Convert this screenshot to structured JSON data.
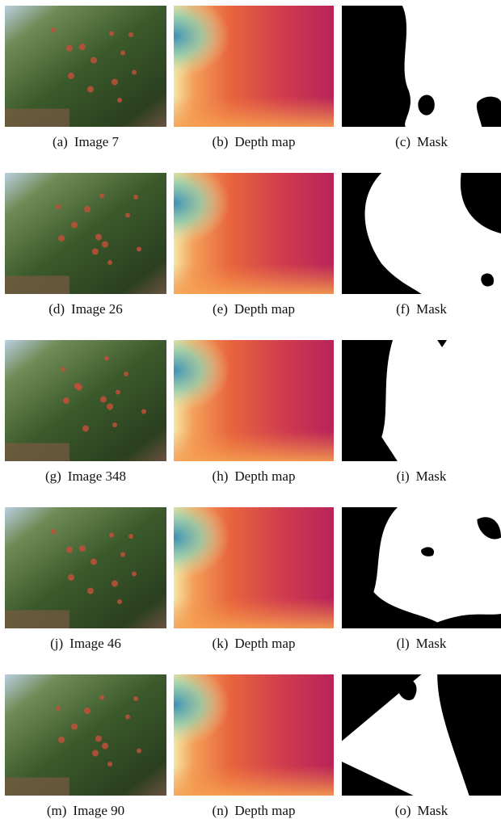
{
  "figure": {
    "panels": [
      {
        "label": "(a)",
        "caption": "Image 7"
      },
      {
        "label": "(b)",
        "caption": "Depth map"
      },
      {
        "label": "(c)",
        "caption": "Mask"
      },
      {
        "label": "(d)",
        "caption": "Image 26"
      },
      {
        "label": "(e)",
        "caption": "Depth map"
      },
      {
        "label": "(f)",
        "caption": "Mask"
      },
      {
        "label": "(g)",
        "caption": "Image 348"
      },
      {
        "label": "(h)",
        "caption": "Depth map"
      },
      {
        "label": "(i)",
        "caption": "Mask"
      },
      {
        "label": "(j)",
        "caption": "Image 46"
      },
      {
        "label": "(k)",
        "caption": "Depth map"
      },
      {
        "label": "(l)",
        "caption": "Mask"
      },
      {
        "label": "(m)",
        "caption": "Image 90"
      },
      {
        "label": "(n)",
        "caption": "Depth map"
      },
      {
        "label": "(o)",
        "caption": "Mask"
      }
    ]
  }
}
